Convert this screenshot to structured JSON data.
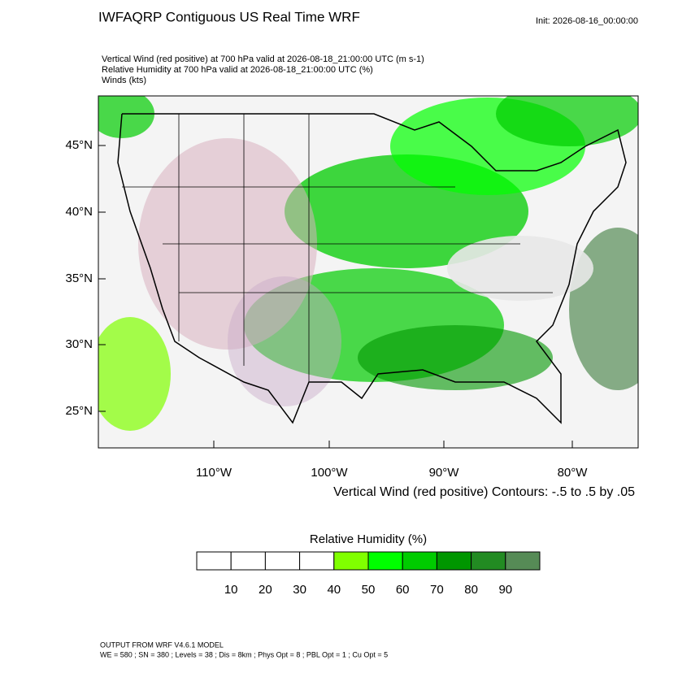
{
  "header": {
    "title": "IWFAQRP Contiguous US Real Time WRF",
    "init": "Init: 2026-08-16_00:00:00"
  },
  "description": [
    "Vertical Wind (red positive) at 700 hPa valid at 2026-08-18_21:00:00 UTC   (m s-1)",
    "Relative Humidity at 700 hPa valid at 2026-08-18_21:00:00 UTC   (%)",
    "Winds   (kts)"
  ],
  "map": {
    "lat_labels": [
      "45°N",
      "40°N",
      "35°N",
      "30°N",
      "25°N"
    ],
    "lon_labels": [
      "110°W",
      "100°W",
      "90°W",
      "80°W"
    ],
    "contour_note": "Vertical Wind (red positive) Contours: -.5 to .5 by .05"
  },
  "colorbar": {
    "title": "Relative Humidity  (%)",
    "labels": [
      10,
      20,
      30,
      40,
      50,
      60,
      70,
      80,
      90
    ],
    "colors": [
      "#ffffff",
      "#ffffff",
      "#ffffff",
      "#ffffff",
      "#80ff00",
      "#00ff00",
      "#00cc00",
      "#009600",
      "#228b22",
      "#568b56"
    ]
  },
  "footer": [
    "OUTPUT FROM WRF V4.6.1 MODEL",
    "WE = 580 ; SN = 380 ; Levels = 38 ; Dis = 8km ; Phys Opt = 8 ; PBL Opt = 1 ; Cu Opt = 5"
  ]
}
